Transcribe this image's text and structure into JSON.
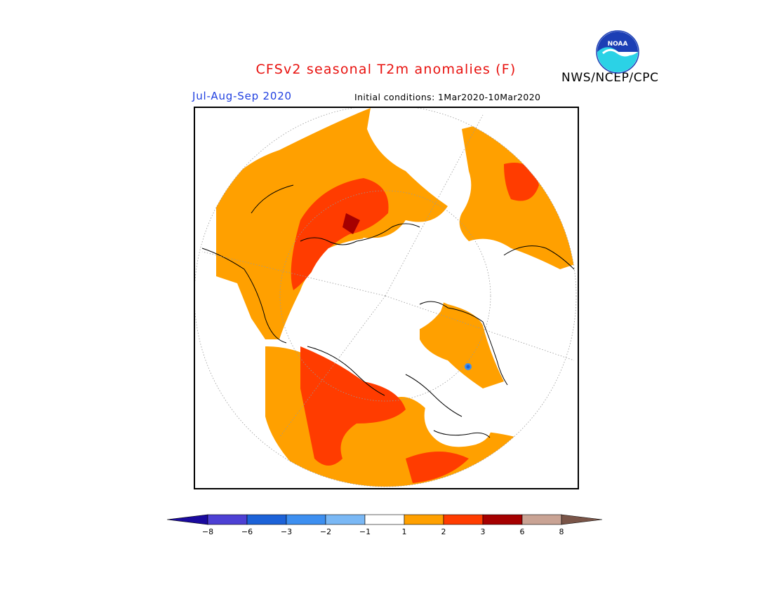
{
  "header": {
    "title": "CFSv2 seasonal T2m anomalies (F)",
    "agency": "NWS/NCEP/CPC",
    "period": "Jul-Aug-Sep 2020",
    "initial_conditions": "Initial conditions: 1Mar2020-10Mar2020",
    "logo_text": "NOAA"
  },
  "colors": {
    "title": "#e8110e",
    "period": "#1f3fe0",
    "land_outline": "#000000",
    "grid": "#999999"
  },
  "legend": {
    "bins": [
      {
        "color": "#1a0a9e"
      },
      {
        "color": "#4d40d4"
      },
      {
        "color": "#1c62d8"
      },
      {
        "color": "#3d8ff0"
      },
      {
        "color": "#7ab8f5"
      },
      {
        "color": "#ffffff"
      },
      {
        "color": "#ffa000"
      },
      {
        "color": "#ff3c00"
      },
      {
        "color": "#a50000"
      },
      {
        "color": "#c9a394"
      },
      {
        "color": "#7a5548"
      }
    ],
    "ticks": [
      "−8",
      "−6",
      "−3",
      "−2",
      "−1",
      "1",
      "2",
      "3",
      "6",
      "8"
    ]
  },
  "map": {
    "projection": "north-polar-stereographic",
    "variable": "T2m anomaly",
    "units": "F"
  }
}
